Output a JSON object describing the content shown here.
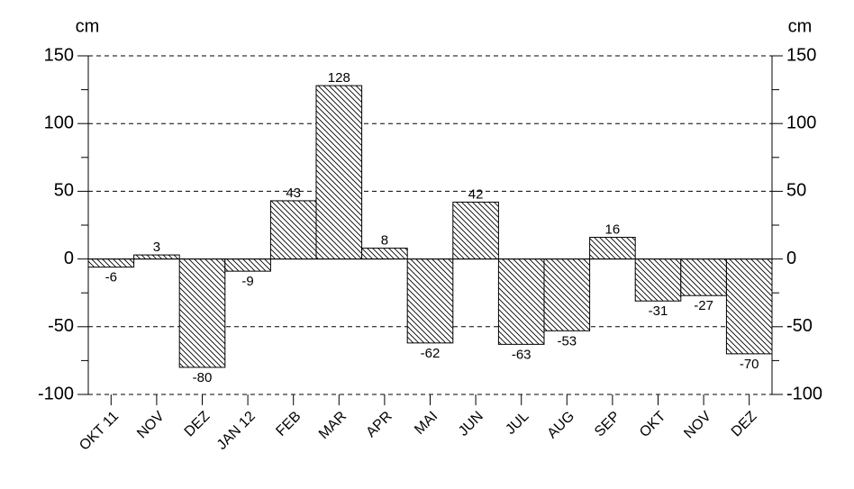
{
  "chart_data": {
    "type": "bar",
    "ylabel": "cm",
    "y2label": "cm",
    "categories": [
      "OKT 11",
      "NOV",
      "DEZ",
      "JAN 12",
      "FEB",
      "MAR",
      "APR",
      "MAI",
      "JUN",
      "JUL",
      "AUG",
      "SEP",
      "OKT",
      "NOV",
      "DEZ"
    ],
    "values": [
      -6,
      3,
      -80,
      -9,
      43,
      128,
      8,
      -62,
      42,
      -63,
      -53,
      16,
      -31,
      -27,
      -70
    ],
    "color": "#000000",
    "ylim": [
      -100,
      150
    ],
    "yticks": [
      -100,
      -50,
      0,
      50,
      100,
      150
    ],
    "y2lim": [
      -100,
      150
    ],
    "y2ticks": [
      -100,
      -50,
      0,
      50,
      100,
      150
    ],
    "grid": true
  }
}
